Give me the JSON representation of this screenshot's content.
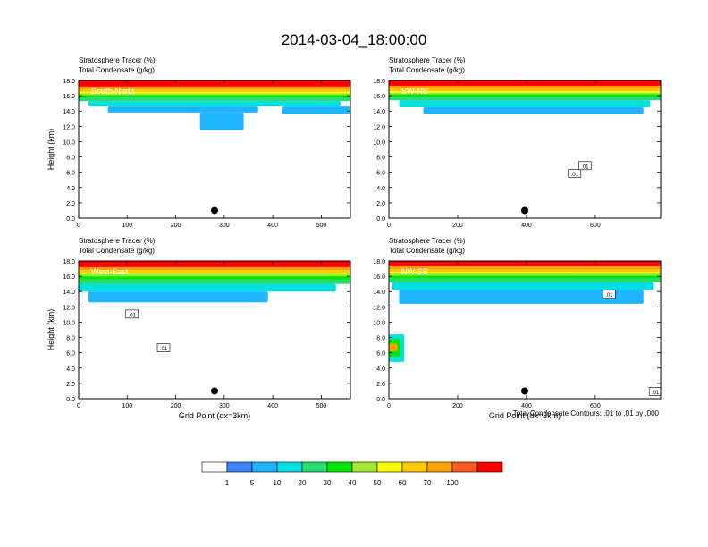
{
  "figure": {
    "title": "2014-03-04_18:00:00",
    "footnote": "Total Condensate Contours: .01 to .01 by .000"
  },
  "chart_data": [
    {
      "type": "heatmap",
      "panel": "South-North",
      "label": "South-North",
      "left_title_line1": "Stratosphere Tracer   (%)",
      "left_title_line2": "Total Condensate   (g/kg)",
      "ylabel": "Height (km)",
      "xlabel": "",
      "xlim": [
        0,
        560
      ],
      "ylim": [
        0,
        18
      ],
      "xticks": [
        0,
        100,
        200,
        300,
        400,
        500
      ],
      "yticks": [
        0.0,
        2.0,
        4.0,
        6.0,
        8.0,
        10.0,
        12.0,
        14.0,
        16.0,
        18.0
      ],
      "ytick_labels": [
        "0.0",
        "2.0",
        "4.0",
        "6.0",
        "8.0",
        "10.0",
        "12.0",
        "14.0",
        "16.0",
        "18.0"
      ],
      "marker": {
        "x": 280,
        "y": 1.0
      },
      "contour_labels": [],
      "bands": [
        {
          "level": 100,
          "x": [
            0,
            560
          ],
          "bottom": 17.2,
          "top": 18.0
        },
        {
          "level": 70,
          "x": [
            0,
            560
          ],
          "bottom": 16.8,
          "top": 17.2
        },
        {
          "level": 60,
          "x": [
            0,
            560
          ],
          "bottom": 16.5,
          "top": 16.8
        },
        {
          "level": 50,
          "x": [
            0,
            560
          ],
          "bottom": 16.3,
          "top": 16.5
        },
        {
          "level": 40,
          "x": [
            0,
            560
          ],
          "bottom": 16.1,
          "top": 16.3
        },
        {
          "level": 30,
          "x": [
            0,
            560
          ],
          "bottom": 15.8,
          "top": 16.1
        },
        {
          "level": 20,
          "x": [
            0,
            560
          ],
          "bottom": 15.3,
          "top": 15.8
        },
        {
          "level": 10,
          "x": [
            20,
            540
          ],
          "bottom": 14.6,
          "top": 15.3
        },
        {
          "level": 5,
          "x": [
            60,
            370
          ],
          "bottom": 13.8,
          "top": 14.6
        },
        {
          "level": 5,
          "x": [
            420,
            560
          ],
          "bottom": 13.6,
          "top": 14.6
        },
        {
          "level": 5,
          "x": [
            250,
            340
          ],
          "bottom": 11.5,
          "top": 13.8
        }
      ]
    },
    {
      "type": "heatmap",
      "panel": "SW-NE",
      "label": "SW-NE",
      "left_title_line1": "Stratosphere Tracer   (%)",
      "left_title_line2": "Total Condensate   (g/kg)",
      "ylabel": "",
      "xlabel": "",
      "xlim": [
        0,
        790
      ],
      "ylim": [
        0,
        18
      ],
      "xticks": [
        0,
        200,
        400,
        600
      ],
      "yticks": [
        0.0,
        2.0,
        4.0,
        6.0,
        8.0,
        10.0,
        12.0,
        14.0,
        16.0,
        18.0
      ],
      "ytick_labels": [
        "0.0",
        "2.0",
        "4.0",
        "6.0",
        "8.0",
        "10.0",
        "12.0",
        "14.0",
        "16.0",
        "18.0"
      ],
      "marker": {
        "x": 395,
        "y": 1.0
      },
      "contour_labels": [
        {
          "text": ".01",
          "x": 540,
          "y": 5.8
        },
        {
          "text": ".01",
          "x": 570,
          "y": 6.8
        }
      ],
      "bands": [
        {
          "level": 100,
          "x": [
            0,
            790
          ],
          "bottom": 17.3,
          "top": 18.0
        },
        {
          "level": 70,
          "x": [
            0,
            790
          ],
          "bottom": 16.9,
          "top": 17.3
        },
        {
          "level": 60,
          "x": [
            0,
            790
          ],
          "bottom": 16.6,
          "top": 16.9
        },
        {
          "level": 50,
          "x": [
            0,
            790
          ],
          "bottom": 16.4,
          "top": 16.6
        },
        {
          "level": 40,
          "x": [
            0,
            790
          ],
          "bottom": 16.2,
          "top": 16.4
        },
        {
          "level": 30,
          "x": [
            0,
            790
          ],
          "bottom": 15.9,
          "top": 16.2
        },
        {
          "level": 20,
          "x": [
            0,
            790
          ],
          "bottom": 15.4,
          "top": 15.9
        },
        {
          "level": 10,
          "x": [
            30,
            760
          ],
          "bottom": 14.5,
          "top": 15.4
        },
        {
          "level": 5,
          "x": [
            100,
            740
          ],
          "bottom": 13.6,
          "top": 14.5
        }
      ]
    },
    {
      "type": "heatmap",
      "panel": "West-East",
      "label": "West-East",
      "left_title_line1": "Stratosphere Tracer   (%)",
      "left_title_line2": "Total Condensate   (g/kg)",
      "ylabel": "Height (km)",
      "xlabel": "Grid Point (dx=3km)",
      "xlim": [
        0,
        560
      ],
      "ylim": [
        0,
        18
      ],
      "xticks": [
        0,
        100,
        200,
        300,
        400,
        500
      ],
      "yticks": [
        0.0,
        2.0,
        4.0,
        6.0,
        8.0,
        10.0,
        12.0,
        14.0,
        16.0,
        18.0
      ],
      "ytick_labels": [
        "0.0",
        "2.0",
        "4.0",
        "6.0",
        "8.0",
        "10.0",
        "12.0",
        "14.0",
        "16.0",
        "18.0"
      ],
      "marker": {
        "x": 280,
        "y": 1.0
      },
      "contour_labels": [
        {
          "text": ".01",
          "x": 110,
          "y": 11.0
        },
        {
          "text": ".01",
          "x": 175,
          "y": 6.6
        }
      ],
      "bands": [
        {
          "level": 100,
          "x": [
            0,
            560
          ],
          "bottom": 17.2,
          "top": 18.0
        },
        {
          "level": 70,
          "x": [
            0,
            560
          ],
          "bottom": 16.8,
          "top": 17.2
        },
        {
          "level": 60,
          "x": [
            0,
            560
          ],
          "bottom": 16.5,
          "top": 16.8
        },
        {
          "level": 50,
          "x": [
            0,
            560
          ],
          "bottom": 16.3,
          "top": 16.5
        },
        {
          "level": 40,
          "x": [
            0,
            560
          ],
          "bottom": 16.0,
          "top": 16.3
        },
        {
          "level": 30,
          "x": [
            0,
            560
          ],
          "bottom": 15.6,
          "top": 16.0
        },
        {
          "level": 20,
          "x": [
            0,
            560
          ],
          "bottom": 15.0,
          "top": 15.6
        },
        {
          "level": 10,
          "x": [
            0,
            530
          ],
          "bottom": 14.0,
          "top": 15.0
        },
        {
          "level": 5,
          "x": [
            20,
            390
          ],
          "bottom": 12.6,
          "top": 14.0
        }
      ]
    },
    {
      "type": "heatmap",
      "panel": "NW-SE",
      "label": "NW-SE",
      "left_title_line1": "Stratosphere Tracer   (%)",
      "left_title_line2": "Total Condensate   (g/kg)",
      "ylabel": "",
      "xlabel": "Grid Point (dx=3km)",
      "xlim": [
        0,
        790
      ],
      "ylim": [
        0,
        18
      ],
      "xticks": [
        0,
        200,
        400,
        600
      ],
      "yticks": [
        0.0,
        2.0,
        4.0,
        6.0,
        8.0,
        10.0,
        12.0,
        14.0,
        16.0,
        18.0
      ],
      "ytick_labels": [
        "0.0",
        "2.0",
        "4.0",
        "6.0",
        "8.0",
        "10.0",
        "12.0",
        "14.0",
        "16.0",
        "18.0"
      ],
      "marker": {
        "x": 395,
        "y": 1.0
      },
      "contour_labels": [
        {
          "text": ".01",
          "x": 640,
          "y": 13.6
        },
        {
          "text": ".01",
          "x": 775,
          "y": 0.9
        }
      ],
      "bands": [
        {
          "level": 100,
          "x": [
            0,
            790
          ],
          "bottom": 17.3,
          "top": 18.0
        },
        {
          "level": 70,
          "x": [
            0,
            790
          ],
          "bottom": 16.9,
          "top": 17.3
        },
        {
          "level": 60,
          "x": [
            0,
            790
          ],
          "bottom": 16.6,
          "top": 16.9
        },
        {
          "level": 50,
          "x": [
            0,
            790
          ],
          "bottom": 16.4,
          "top": 16.6
        },
        {
          "level": 40,
          "x": [
            0,
            790
          ],
          "bottom": 16.1,
          "top": 16.4
        },
        {
          "level": 30,
          "x": [
            0,
            790
          ],
          "bottom": 15.7,
          "top": 16.1
        },
        {
          "level": 20,
          "x": [
            0,
            790
          ],
          "bottom": 15.2,
          "top": 15.7
        },
        {
          "level": 10,
          "x": [
            10,
            770
          ],
          "bottom": 14.2,
          "top": 15.2
        },
        {
          "level": 5,
          "x": [
            30,
            740
          ],
          "bottom": 12.4,
          "top": 14.2
        },
        {
          "level": 70,
          "x": [
            0,
            25
          ],
          "bottom": 6.2,
          "top": 7.2
        },
        {
          "level": 30,
          "x": [
            0,
            35
          ],
          "bottom": 5.5,
          "top": 7.8
        },
        {
          "level": 10,
          "x": [
            0,
            45
          ],
          "bottom": 4.8,
          "top": 8.4
        }
      ]
    }
  ],
  "colorbar": {
    "levels": [
      "1",
      "5",
      "10",
      "20",
      "30",
      "40",
      "50",
      "60",
      "70",
      "100"
    ],
    "colors": [
      "#ffffff",
      "#3c82ff",
      "#1eb4ff",
      "#00e0e0",
      "#28dc6e",
      "#00e600",
      "#a0e632",
      "#fafa00",
      "#ffc800",
      "#ffa000",
      "#ff5a1e",
      "#ff0000"
    ]
  }
}
